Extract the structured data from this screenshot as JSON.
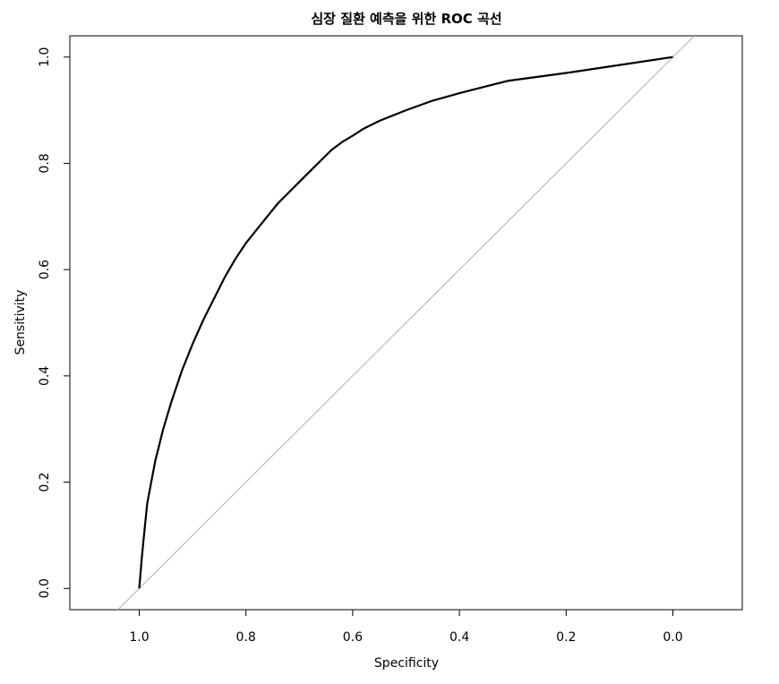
{
  "chart_data": {
    "type": "line",
    "title": "심장 질환 예측을 위한 ROC 곡선",
    "xlabel": "Specificity",
    "ylabel": "Sensitivity",
    "xlim": [
      1.13,
      -0.13
    ],
    "ylim": [
      -0.04,
      1.04
    ],
    "x_reversed": true,
    "x_ticks": [
      1.0,
      0.8,
      0.6,
      0.4,
      0.2,
      0.0
    ],
    "x_tick_labels": [
      "1.0",
      "0.8",
      "0.6",
      "0.4",
      "0.2",
      "0.0"
    ],
    "y_ticks": [
      0.0,
      0.2,
      0.4,
      0.6,
      0.8,
      1.0
    ],
    "y_tick_labels": [
      "0.0",
      "0.2",
      "0.4",
      "0.6",
      "0.8",
      "1.0"
    ],
    "grid": false,
    "legend": "none",
    "series": [
      {
        "specificity": [
          1.0,
          0.995,
          0.99,
          0.985,
          0.97,
          0.955,
          0.94,
          0.92,
          0.9,
          0.88,
          0.86,
          0.84,
          0.82,
          0.8,
          0.78,
          0.76,
          0.74,
          0.72,
          0.7,
          0.68,
          0.66,
          0.64,
          0.62,
          0.6,
          0.58,
          0.55,
          0.5,
          0.45,
          0.4,
          0.35,
          0.31,
          0.2,
          0.1,
          0.0
        ],
        "sensitivity": [
          0.0,
          0.06,
          0.11,
          0.16,
          0.24,
          0.3,
          0.35,
          0.41,
          0.46,
          0.505,
          0.545,
          0.585,
          0.62,
          0.65,
          0.675,
          0.7,
          0.725,
          0.745,
          0.765,
          0.785,
          0.805,
          0.825,
          0.84,
          0.852,
          0.865,
          0.88,
          0.9,
          0.918,
          0.932,
          0.945,
          0.955,
          0.97,
          0.985,
          1.0
        ],
        "color": "#000000"
      }
    ],
    "reference_line": {
      "intercept": 1,
      "slope": -1,
      "color": "#b0b0b0"
    }
  }
}
